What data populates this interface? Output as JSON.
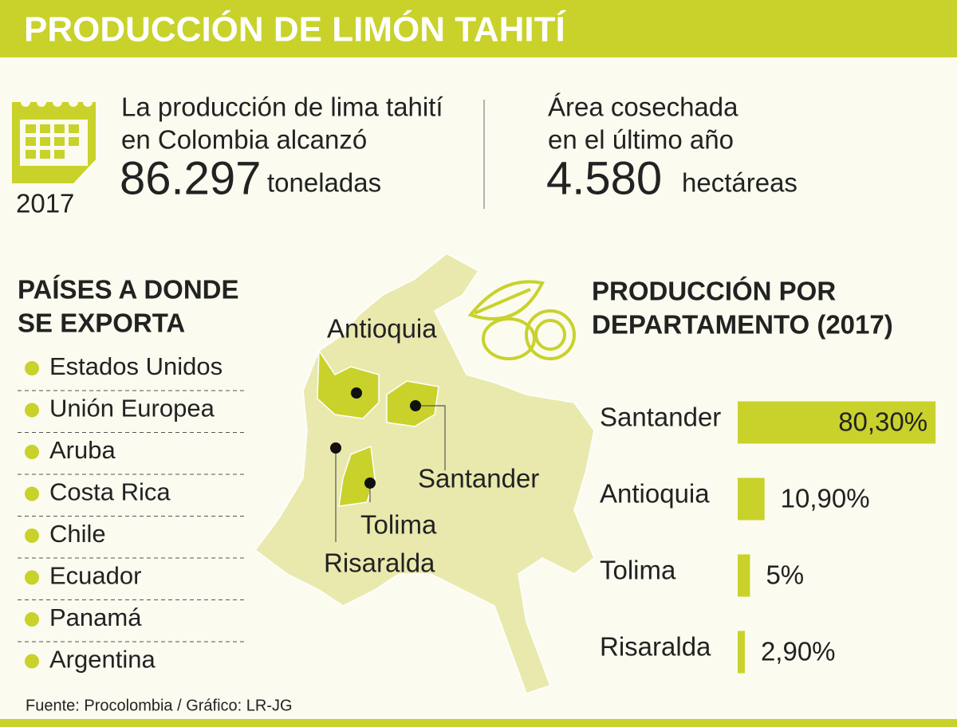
{
  "header": {
    "title": "PRODUCCIÓN DE LIMÓN TAHITÍ"
  },
  "stats": {
    "year": "2017",
    "production": {
      "lines": [
        "La producción de lima tahití",
        "en Colombia alcanzó"
      ],
      "value": "86.297",
      "unit": "toneladas"
    },
    "area": {
      "lines": [
        "Área cosechada",
        "en el último año"
      ],
      "value": "4.580",
      "unit": "hectáreas"
    }
  },
  "exports": {
    "title_lines": [
      "PAÍSES A DONDE",
      "SE EXPORTA"
    ],
    "countries": [
      "Estados Unidos",
      "Unión Europea",
      "Aruba",
      "Costa Rica",
      "Chile",
      "Ecuador",
      "Panamá",
      "Argentina"
    ]
  },
  "map": {
    "labels": [
      "Antioquia",
      "Santander",
      "Tolima",
      "Risaralda"
    ]
  },
  "chart_data": {
    "type": "bar",
    "orientation": "horizontal",
    "title_lines": [
      "PRODUCCIÓN POR",
      "DEPARTAMENTO (2017)"
    ],
    "categories": [
      "Santander",
      "Antioquia",
      "Tolima",
      "Risaralda"
    ],
    "values": [
      80.3,
      10.9,
      5,
      2.9
    ],
    "value_labels": [
      "80,30%",
      "10,90%",
      "5%",
      "2,90%"
    ],
    "color": "#c8d22a"
  },
  "source": "Fuente: Procolombia / Gráfico: LR-JG"
}
